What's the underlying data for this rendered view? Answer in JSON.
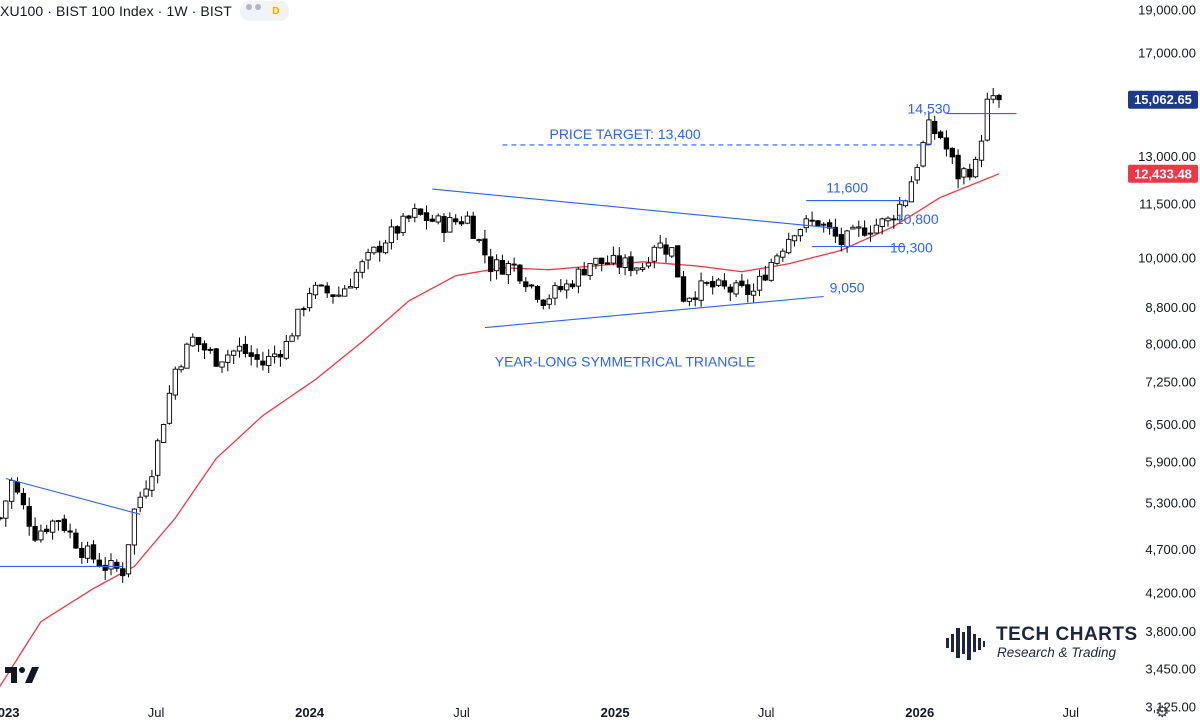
{
  "header": {
    "title": "XU100 · BIST 100 Index · 1W · BIST",
    "badge": "D"
  },
  "branding": {
    "line1": "TECH CHARTS",
    "line2": "Research & Trading"
  },
  "price_labels": {
    "last_price": "15,062.65",
    "last_price_color": "#1b3a8c",
    "ma_value": "12,433.48",
    "ma_color": "#f23645"
  },
  "colors": {
    "annotation_blue": "#2962ff",
    "moving_average": "#f23645",
    "candle_up_fill": "#ffffff",
    "candle_down_fill": "#000000"
  },
  "chart_data": {
    "type": "candlestick",
    "yscale": "log",
    "ylim": [
      3000,
      19500
    ],
    "y_ticks": [
      {
        "v": 19000,
        "label": "19,000.00"
      },
      {
        "v": 17000,
        "label": "17,000.00"
      },
      {
        "v": 13000,
        "label": "13,000.00"
      },
      {
        "v": 11500,
        "label": "11,500.00"
      },
      {
        "v": 10000,
        "label": "10,000.00"
      },
      {
        "v": 8800,
        "label": "8,800.00"
      },
      {
        "v": 8000,
        "label": "8,000.00"
      },
      {
        "v": 7250,
        "label": "7,250.00"
      },
      {
        "v": 6500,
        "label": "6,500.00"
      },
      {
        "v": 5900,
        "label": "5,900.00"
      },
      {
        "v": 5300,
        "label": "5,300.00"
      },
      {
        "v": 4700,
        "label": "4,700.00"
      },
      {
        "v": 4200,
        "label": "4,200.00"
      },
      {
        "v": 3800,
        "label": "3,800.00"
      },
      {
        "v": 3450,
        "label": "3,450.00"
      },
      {
        "v": 3125,
        "label": "3,125.00"
      }
    ],
    "x_ticks": [
      {
        "date": "2023-01-01",
        "label": "2023",
        "bold": true
      },
      {
        "date": "2023-07-01",
        "label": "Jul",
        "bold": false
      },
      {
        "date": "2024-01-01",
        "label": "2024",
        "bold": true
      },
      {
        "date": "2024-07-01",
        "label": "Jul",
        "bold": false
      },
      {
        "date": "2025-01-01",
        "label": "2025",
        "bold": true
      },
      {
        "date": "2025-07-01",
        "label": "Jul",
        "bold": false
      },
      {
        "date": "2026-01-01",
        "label": "2026",
        "bold": true
      },
      {
        "date": "2026-07-01",
        "label": "Jul",
        "bold": false
      }
    ],
    "x_range": [
      "2022-12-26",
      "2026-08-17"
    ],
    "anchors": [
      [
        "2022-12-26",
        5100
      ],
      [
        "2023-01-09",
        5600
      ],
      [
        "2023-02-06",
        4900
      ],
      [
        "2023-03-06",
        5100
      ],
      [
        "2023-04-03",
        4700
      ],
      [
        "2023-05-01",
        4500
      ],
      [
        "2023-05-22",
        4450
      ],
      [
        "2023-06-05",
        5200
      ],
      [
        "2023-06-26",
        5800
      ],
      [
        "2023-07-24",
        7500
      ],
      [
        "2023-08-14",
        8100
      ],
      [
        "2023-09-11",
        7700
      ],
      [
        "2023-10-09",
        7900
      ],
      [
        "2023-11-06",
        7600
      ],
      [
        "2023-12-04",
        8000
      ],
      [
        "2024-01-01",
        9200
      ],
      [
        "2024-02-05",
        9100
      ],
      [
        "2024-03-04",
        9800
      ],
      [
        "2024-04-01",
        10500
      ],
      [
        "2024-05-06",
        11200
      ],
      [
        "2024-06-10",
        10900
      ],
      [
        "2024-07-08",
        11100
      ],
      [
        "2024-08-05",
        9800
      ],
      [
        "2024-09-02",
        9800
      ],
      [
        "2024-10-07",
        9000
      ],
      [
        "2024-11-04",
        9300
      ],
      [
        "2024-12-02",
        9900
      ],
      [
        "2025-01-06",
        9850
      ],
      [
        "2025-02-03",
        9800
      ],
      [
        "2025-02-17",
        10400
      ],
      [
        "2025-03-10",
        10200
      ],
      [
        "2025-03-24",
        9050
      ],
      [
        "2025-04-21",
        9300
      ],
      [
        "2025-05-19",
        9200
      ],
      [
        "2025-06-16",
        9150
      ],
      [
        "2025-07-07",
        9900
      ],
      [
        "2025-08-04",
        10800
      ],
      [
        "2025-09-01",
        11000
      ],
      [
        "2025-09-29",
        10400
      ],
      [
        "2025-10-27",
        10800
      ],
      [
        "2025-11-24",
        11000
      ],
      [
        "2025-12-15",
        11700
      ],
      [
        "2026-01-12",
        14000
      ],
      [
        "2026-01-26",
        13700
      ],
      [
        "2026-02-16",
        12400
      ],
      [
        "2026-03-09",
        12700
      ],
      [
        "2026-03-23",
        14900
      ],
      [
        "2026-04-06",
        15062.65
      ]
    ],
    "moving_average": [
      [
        "2022-12-26",
        3300
      ],
      [
        "2023-02-13",
        3900
      ],
      [
        "2023-04-17",
        4250
      ],
      [
        "2023-06-05",
        4500
      ],
      [
        "2023-07-24",
        5100
      ],
      [
        "2023-09-11",
        5950
      ],
      [
        "2023-11-06",
        6650
      ],
      [
        "2024-01-08",
        7300
      ],
      [
        "2024-03-04",
        8050
      ],
      [
        "2024-04-29",
        8950
      ],
      [
        "2024-06-24",
        9550
      ],
      [
        "2024-08-19",
        9750
      ],
      [
        "2024-10-14",
        9700
      ],
      [
        "2024-12-09",
        9800
      ],
      [
        "2025-02-03",
        9900
      ],
      [
        "2025-04-07",
        9800
      ],
      [
        "2025-06-02",
        9650
      ],
      [
        "2025-07-28",
        9850
      ],
      [
        "2025-09-29",
        10200
      ],
      [
        "2025-12-01",
        10850
      ],
      [
        "2026-01-26",
        11700
      ],
      [
        "2026-04-06",
        12433.48
      ]
    ],
    "trendlines": [
      {
        "name": "2023 triangle upper",
        "style": "solid",
        "from": [
          "2023-01-02",
          5650
        ],
        "to": [
          "2023-06-12",
          5150
        ]
      },
      {
        "name": "2023 triangle lower",
        "style": "solid",
        "from": [
          "2022-12-26",
          4500
        ],
        "to": [
          "2023-05-22",
          4500
        ]
      },
      {
        "name": "triangle upper",
        "style": "solid",
        "from": [
          "2024-05-27",
          11950
        ],
        "to": [
          "2025-09-22",
          10800
        ]
      },
      {
        "name": "triangle lower",
        "style": "solid",
        "from": [
          "2024-07-29",
          8350
        ],
        "to": [
          "2025-09-08",
          9050
        ]
      },
      {
        "name": "price target",
        "style": "dashed",
        "from": [
          "2024-08-19",
          13400
        ],
        "to": [
          "2026-01-19",
          13400
        ]
      },
      {
        "name": "level 11,600",
        "style": "solid",
        "from": [
          "2025-08-18",
          11600
        ],
        "to": [
          "2025-12-15",
          11600
        ]
      },
      {
        "name": "level 10,300",
        "style": "solid",
        "from": [
          "2025-08-25",
          10300
        ],
        "to": [
          "2025-12-15",
          10300
        ]
      },
      {
        "name": "level 14,530",
        "style": "solid",
        "from": [
          "2026-02-02",
          14530
        ],
        "to": [
          "2026-04-27",
          14530
        ]
      }
    ],
    "annotations": [
      {
        "text": "PRICE TARGET: 13,400",
        "at": [
          "2025-01-13",
          13400
        ],
        "dy": -6
      },
      {
        "text": "YEAR-LONG SYMMETRICAL TRIANGLE",
        "at": [
          "2025-01-13",
          7550
        ],
        "dy": 0
      },
      {
        "text": "9,050",
        "at": [
          "2025-10-06",
          9050
        ],
        "dy": -4
      },
      {
        "text": "10,800",
        "at": [
          "2025-12-29",
          10800
        ],
        "dy": -4
      },
      {
        "text": "10,300",
        "at": [
          "2025-12-22",
          10300
        ],
        "dy": 6
      },
      {
        "text": "11,600",
        "at": [
          "2025-10-06",
          11600
        ],
        "dy": -8
      },
      {
        "text": "14,530",
        "at": [
          "2026-01-12",
          14530
        ],
        "dy": 0
      }
    ]
  }
}
